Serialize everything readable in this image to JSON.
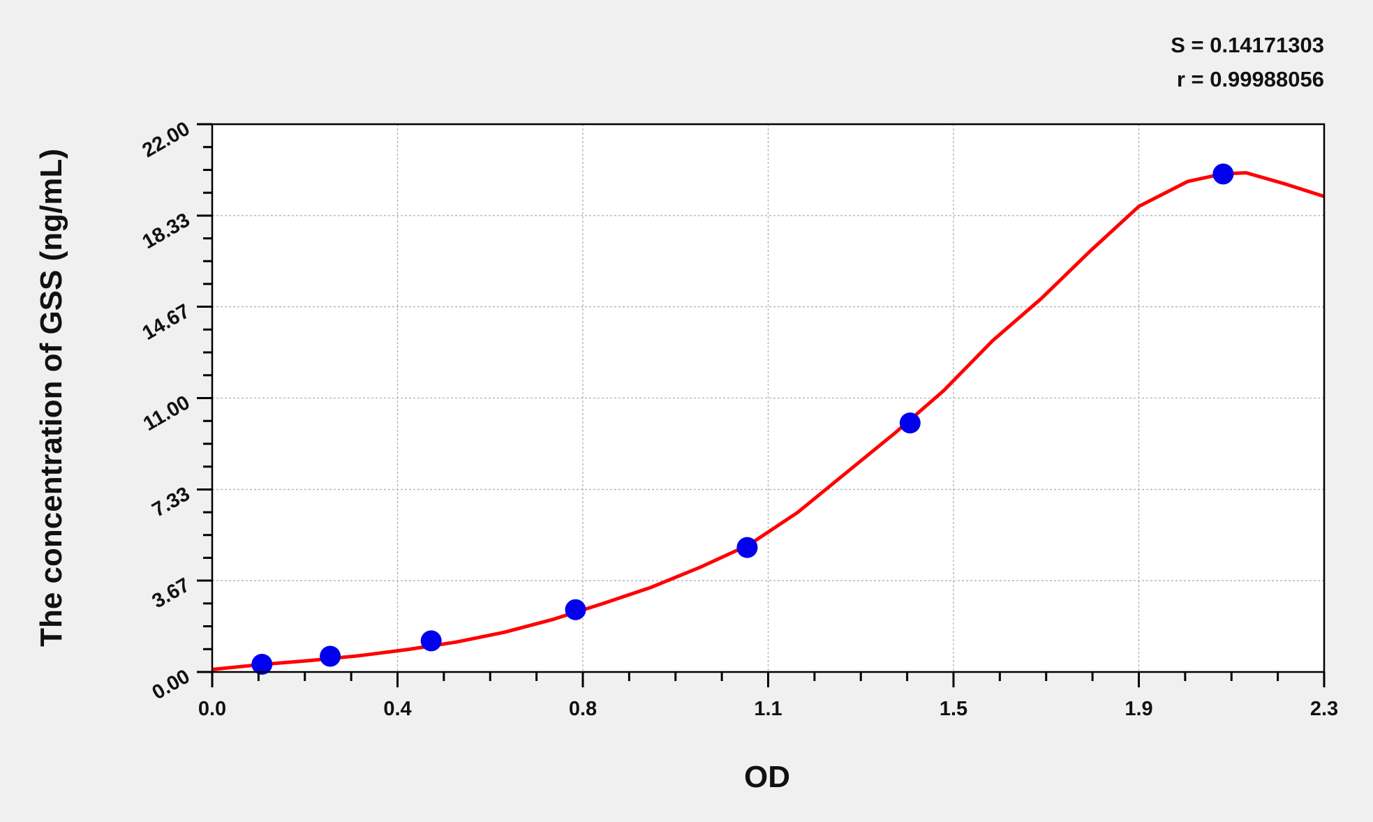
{
  "chart_data": {
    "type": "scatter",
    "title": "",
    "xlabel": "OD",
    "ylabel": "The concentration of GSS (ng/mL)",
    "xlim": [
      0,
      2.28
    ],
    "ylim": [
      0,
      22
    ],
    "x_ticks": [
      0,
      0.38,
      0.76,
      1.14,
      1.52,
      1.9,
      2.28
    ],
    "x_tick_labels": [
      "0.0",
      "0.4",
      "0.8",
      "1.1",
      "1.5",
      "1.9",
      "2.3"
    ],
    "y_ticks": [
      0,
      3.67,
      7.33,
      11,
      14.67,
      18.33,
      22
    ],
    "y_tick_labels": [
      "0.00",
      "3.67",
      "7.33",
      "11.00",
      "14.67",
      "18.33",
      "22.00"
    ],
    "grid": true,
    "stats": [
      "S = 0.14171303",
      "r = 0.99988056"
    ],
    "points": {
      "color": "#0000ee",
      "x": [
        0.102,
        0.242,
        0.449,
        0.745,
        1.097,
        1.431,
        2.073
      ],
      "y": [
        0.31,
        0.63,
        1.25,
        2.5,
        5,
        10,
        20
      ]
    },
    "fit_curve": {
      "color": "#ff0000",
      "x": [
        0,
        0.1,
        0.2,
        0.3,
        0.4,
        0.5,
        0.6,
        0.7,
        0.8,
        0.9,
        1.0,
        1.1,
        1.2,
        1.3,
        1.4,
        1.5,
        1.6,
        1.7,
        1.8,
        1.9,
        2.0,
        2.07,
        2.12,
        2.2,
        2.28
      ],
      "y": [
        0.1,
        0.3,
        0.46,
        0.65,
        0.9,
        1.2,
        1.6,
        2.12,
        2.74,
        3.4,
        4.2,
        5.1,
        6.4,
        8.0,
        9.6,
        11.3,
        13.3,
        15.0,
        16.9,
        18.7,
        19.7,
        20.0,
        20.05,
        19.6,
        19.1
      ]
    }
  }
}
